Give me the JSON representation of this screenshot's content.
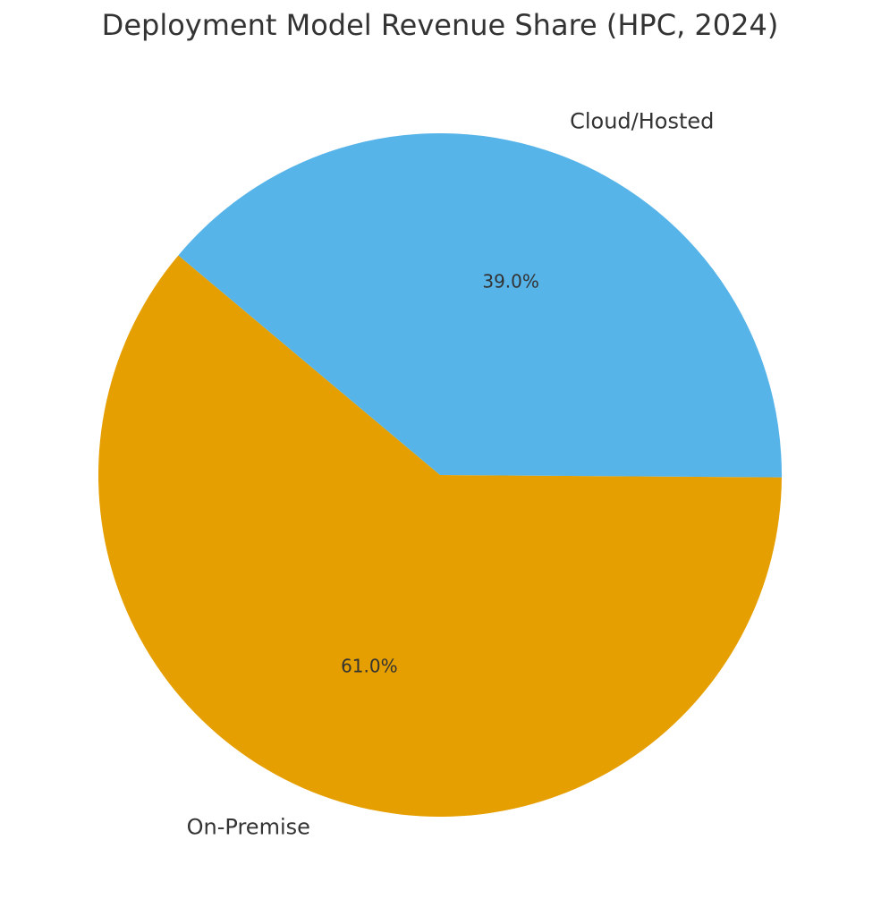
{
  "chart_data": {
    "type": "pie",
    "title": "Deployment Model Revenue Share (HPC, 2024)",
    "categories": [
      "On-Premise",
      "Cloud/Hosted"
    ],
    "values": [
      61.0,
      39.0
    ],
    "value_labels": [
      "61.0%",
      "39.0%"
    ],
    "colors": [
      "#e69f00",
      "#56b4e9"
    ]
  }
}
